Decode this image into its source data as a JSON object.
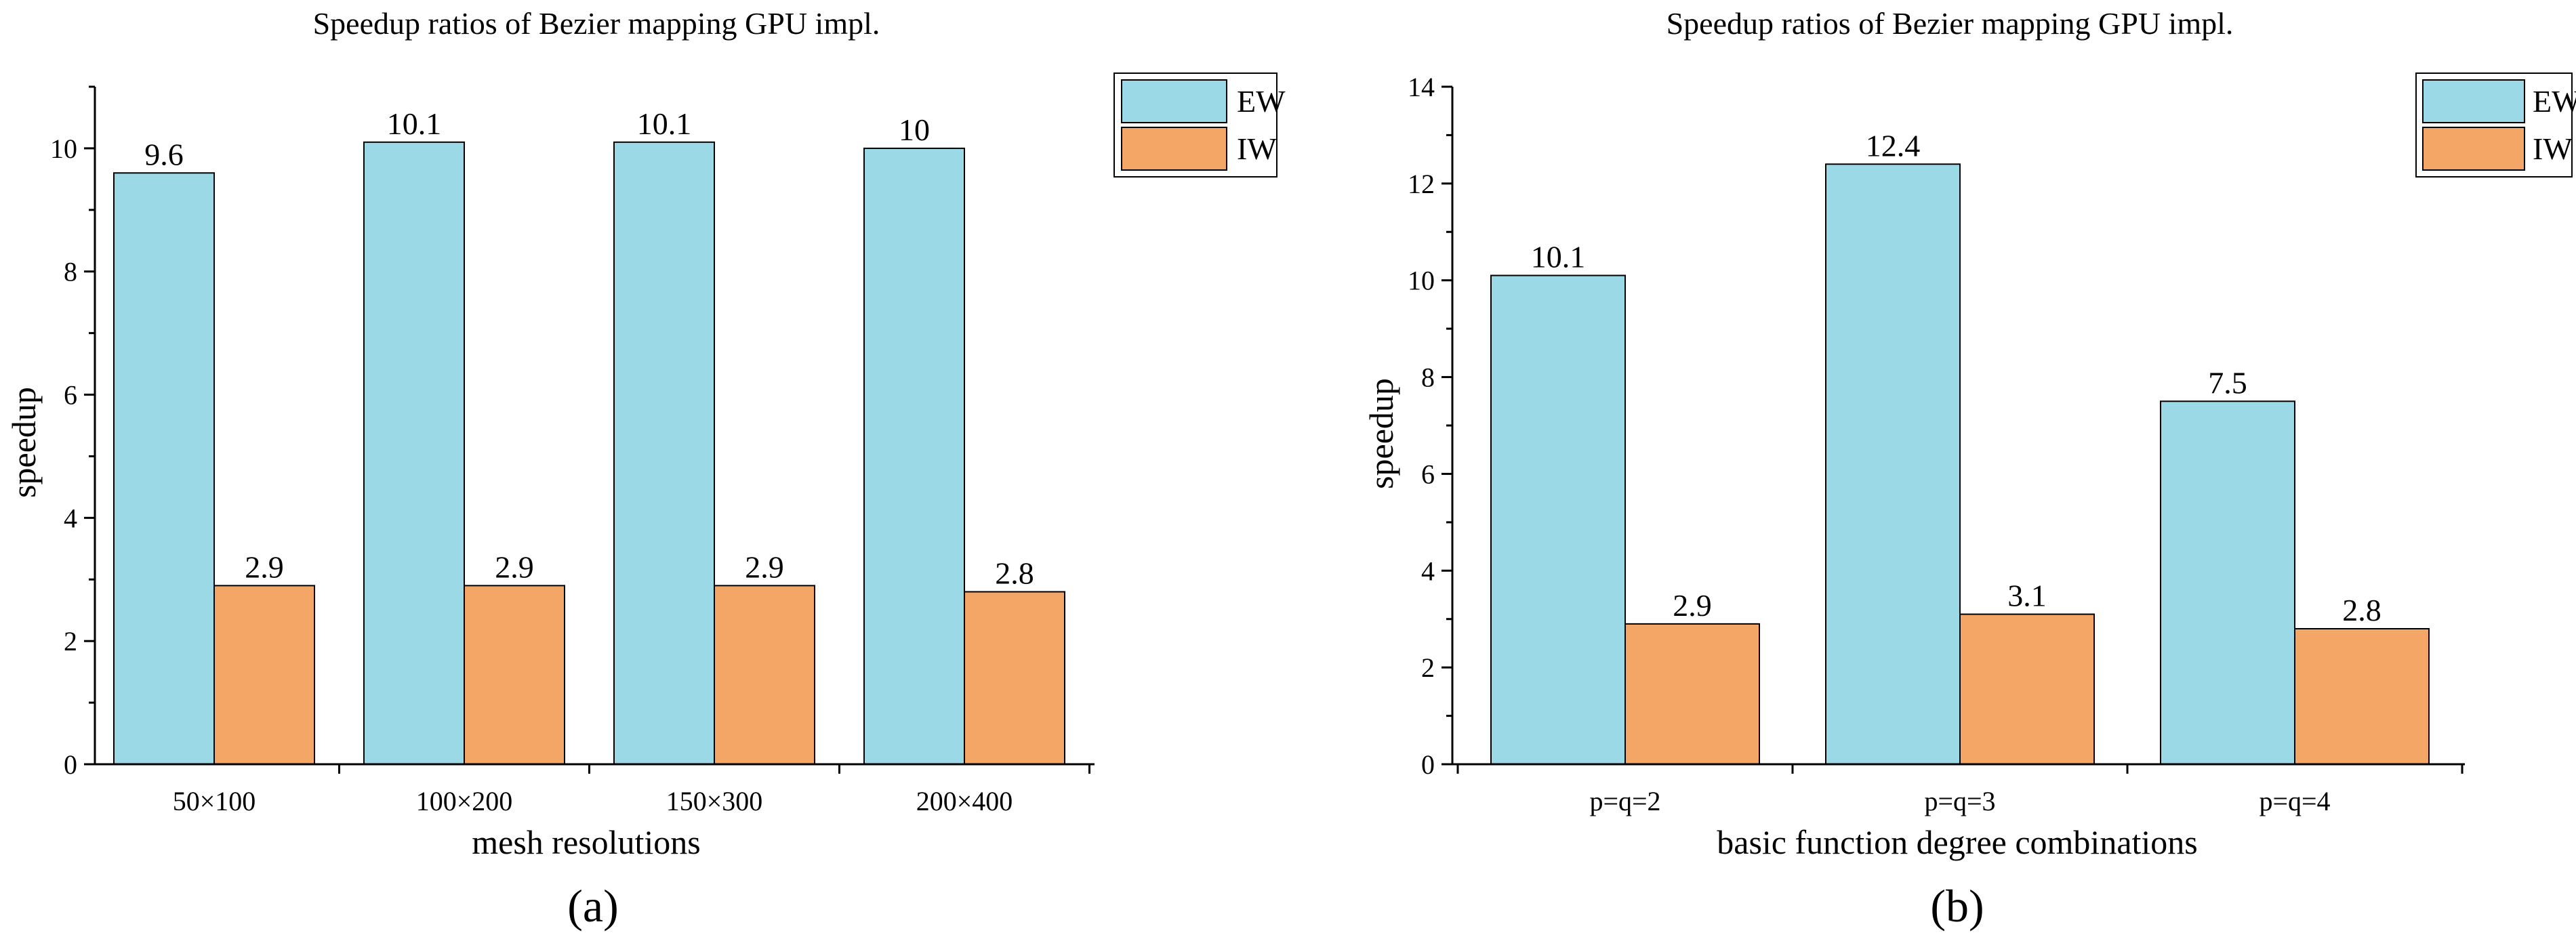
{
  "chart_data": [
    {
      "type": "bar",
      "title": "Speedup ratios of Bezier mapping GPU impl.",
      "xlabel": "mesh resolutions",
      "ylabel": "speedup",
      "panel_label": "(a)",
      "categories": [
        "50×100",
        "100×200",
        "150×300",
        "200×400"
      ],
      "series": [
        {
          "name": "EW",
          "values": [
            9.6,
            10.1,
            10.1,
            10
          ],
          "labels": [
            "9.6",
            "10.1",
            "10.1",
            "10"
          ]
        },
        {
          "name": "IW",
          "values": [
            2.9,
            2.9,
            2.9,
            2.8
          ],
          "labels": [
            "2.9",
            "2.9",
            "2.9",
            "2.8"
          ]
        }
      ],
      "ylim": [
        0,
        11
      ],
      "yticks": [
        0,
        2,
        4,
        6,
        8,
        10
      ],
      "yticks_text": [
        "0",
        "2",
        "4",
        "6",
        "8",
        "10"
      ],
      "legend_position": "top-right",
      "grid": false
    },
    {
      "type": "bar",
      "title": "Speedup ratios of Bezier mapping GPU impl.",
      "xlabel": "basic function degree combinations",
      "ylabel": "speedup",
      "panel_label": "(b)",
      "categories": [
        "p=q=2",
        "p=q=3",
        "p=q=4"
      ],
      "series": [
        {
          "name": "EW",
          "values": [
            10.1,
            12.4,
            7.5
          ],
          "labels": [
            "10.1",
            "12.4",
            "7.5"
          ]
        },
        {
          "name": "IW",
          "values": [
            2.9,
            3.1,
            2.8
          ],
          "labels": [
            "2.9",
            "3.1",
            "2.8"
          ]
        }
      ],
      "ylim": [
        0,
        14
      ],
      "yticks": [
        0,
        2,
        4,
        6,
        8,
        10,
        12,
        14
      ],
      "yticks_text": [
        "0",
        "2",
        "4",
        "6",
        "8",
        "10",
        "12",
        "14"
      ],
      "legend_position": "top-right",
      "grid": false
    }
  ],
  "colors": {
    "EW": "#9bd9e6",
    "IW": "#f3a666",
    "axis": "#000000"
  }
}
